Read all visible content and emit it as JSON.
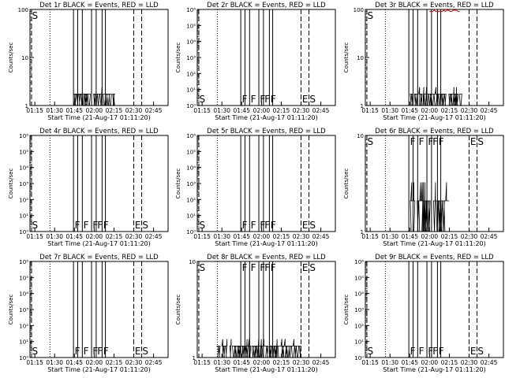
{
  "figure": {
    "xlabel": "Start Time (21-Aug-17 01:11:20)",
    "ylabel": "Counts/sec",
    "x_ticks": [
      "01:15",
      "01:30",
      "01:45",
      "02:00",
      "02:15",
      "02:30",
      "02:45"
    ],
    "x_tick_minutes": [
      15,
      30,
      45,
      60,
      75,
      90,
      105
    ],
    "x_range_minutes": [
      11.33,
      116
    ],
    "marker_colors": {
      "events": "#000000",
      "lld": "#ff0000"
    }
  },
  "chart_data": [
    {
      "type": "line",
      "title": "Det 1r BLACK = Events, RED = LLD",
      "y_scale": "log",
      "y_ticks": [
        "1",
        "10",
        "100"
      ],
      "ylim": [
        1,
        100
      ],
      "annotations": [
        "S"
      ],
      "series": [
        {
          "values": []
        }
      ]
    },
    {
      "type": "line",
      "title": "Det 2r BLACK = Events, RED = LLD",
      "y_scale": "log",
      "y_ticks": [
        "10⁰",
        "10¹",
        "10²",
        "10³",
        "10⁴",
        "10⁵",
        "10⁶"
      ],
      "ylim": [
        1,
        1000000
      ],
      "annotations": [
        "S",
        "F",
        "F",
        "F",
        "F",
        "F",
        "E",
        "S"
      ],
      "series": [
        {
          "values": []
        }
      ]
    },
    {
      "type": "line",
      "title": "Det 3r BLACK = Events, RED = LLD",
      "y_scale": "log",
      "y_ticks": [
        "1",
        "10",
        "100"
      ],
      "ylim": [
        1,
        100
      ],
      "annotations": [
        "S"
      ],
      "series": [
        {
          "values": []
        }
      ]
    },
    {
      "type": "line",
      "title": "Det 4r BLACK = Events, RED = LLD",
      "y_scale": "log",
      "y_ticks": [
        "10⁰",
        "10¹",
        "10²",
        "10³",
        "10⁴",
        "10⁵",
        "10⁶"
      ],
      "ylim": [
        1,
        1000000
      ],
      "annotations": [
        "S",
        "F",
        "F",
        "F",
        "F",
        "F",
        "E",
        "S"
      ],
      "series": [
        {
          "values": []
        }
      ]
    },
    {
      "type": "line",
      "title": "Det 5r BLACK = Events, RED = LLD",
      "y_scale": "log",
      "y_ticks": [
        "10⁰",
        "10¹",
        "10²",
        "10³",
        "10⁴",
        "10⁵",
        "10⁶"
      ],
      "ylim": [
        1,
        1000000
      ],
      "annotations": [
        "S",
        "F",
        "F",
        "F",
        "F",
        "F",
        "E",
        "S"
      ],
      "series": [
        {
          "values": []
        }
      ]
    },
    {
      "type": "line",
      "title": "Det 6r BLACK = Events, RED = LLD",
      "y_scale": "log",
      "y_ticks": [
        "1",
        "10"
      ],
      "ylim": [
        1,
        10
      ],
      "annotations": [
        "S",
        "F",
        "F",
        "F",
        "F",
        "F",
        "E",
        "S"
      ],
      "series": [
        {
          "values": []
        }
      ]
    },
    {
      "type": "line",
      "title": "Det 7r BLACK = Events, RED = LLD",
      "y_scale": "log",
      "y_ticks": [
        "10⁰",
        "10¹",
        "10²",
        "10³",
        "10⁴",
        "10⁵",
        "10⁶"
      ],
      "ylim": [
        1,
        1000000
      ],
      "annotations": [
        "S",
        "F",
        "F",
        "F",
        "F",
        "F",
        "E",
        "S"
      ],
      "series": [
        {
          "values": []
        }
      ]
    },
    {
      "type": "line",
      "title": "Det 8r BLACK = Events, RED = LLD",
      "y_scale": "log",
      "y_ticks": [
        "1",
        "10"
      ],
      "ylim": [
        1,
        10
      ],
      "annotations": [
        "S",
        "F",
        "F",
        "F",
        "F",
        "F",
        "E",
        "S"
      ],
      "series": [
        {
          "values": []
        }
      ]
    },
    {
      "type": "line",
      "title": "Det 9r BLACK = Events, RED = LLD",
      "y_scale": "log",
      "y_ticks": [
        "10⁰",
        "10¹",
        "10²",
        "10³",
        "10⁴",
        "10⁵",
        "10⁶"
      ],
      "ylim": [
        1,
        1000000
      ],
      "annotations": [
        "S",
        "F",
        "F",
        "F",
        "F",
        "F",
        "E",
        "S"
      ],
      "series": [
        {
          "values": []
        }
      ]
    }
  ]
}
